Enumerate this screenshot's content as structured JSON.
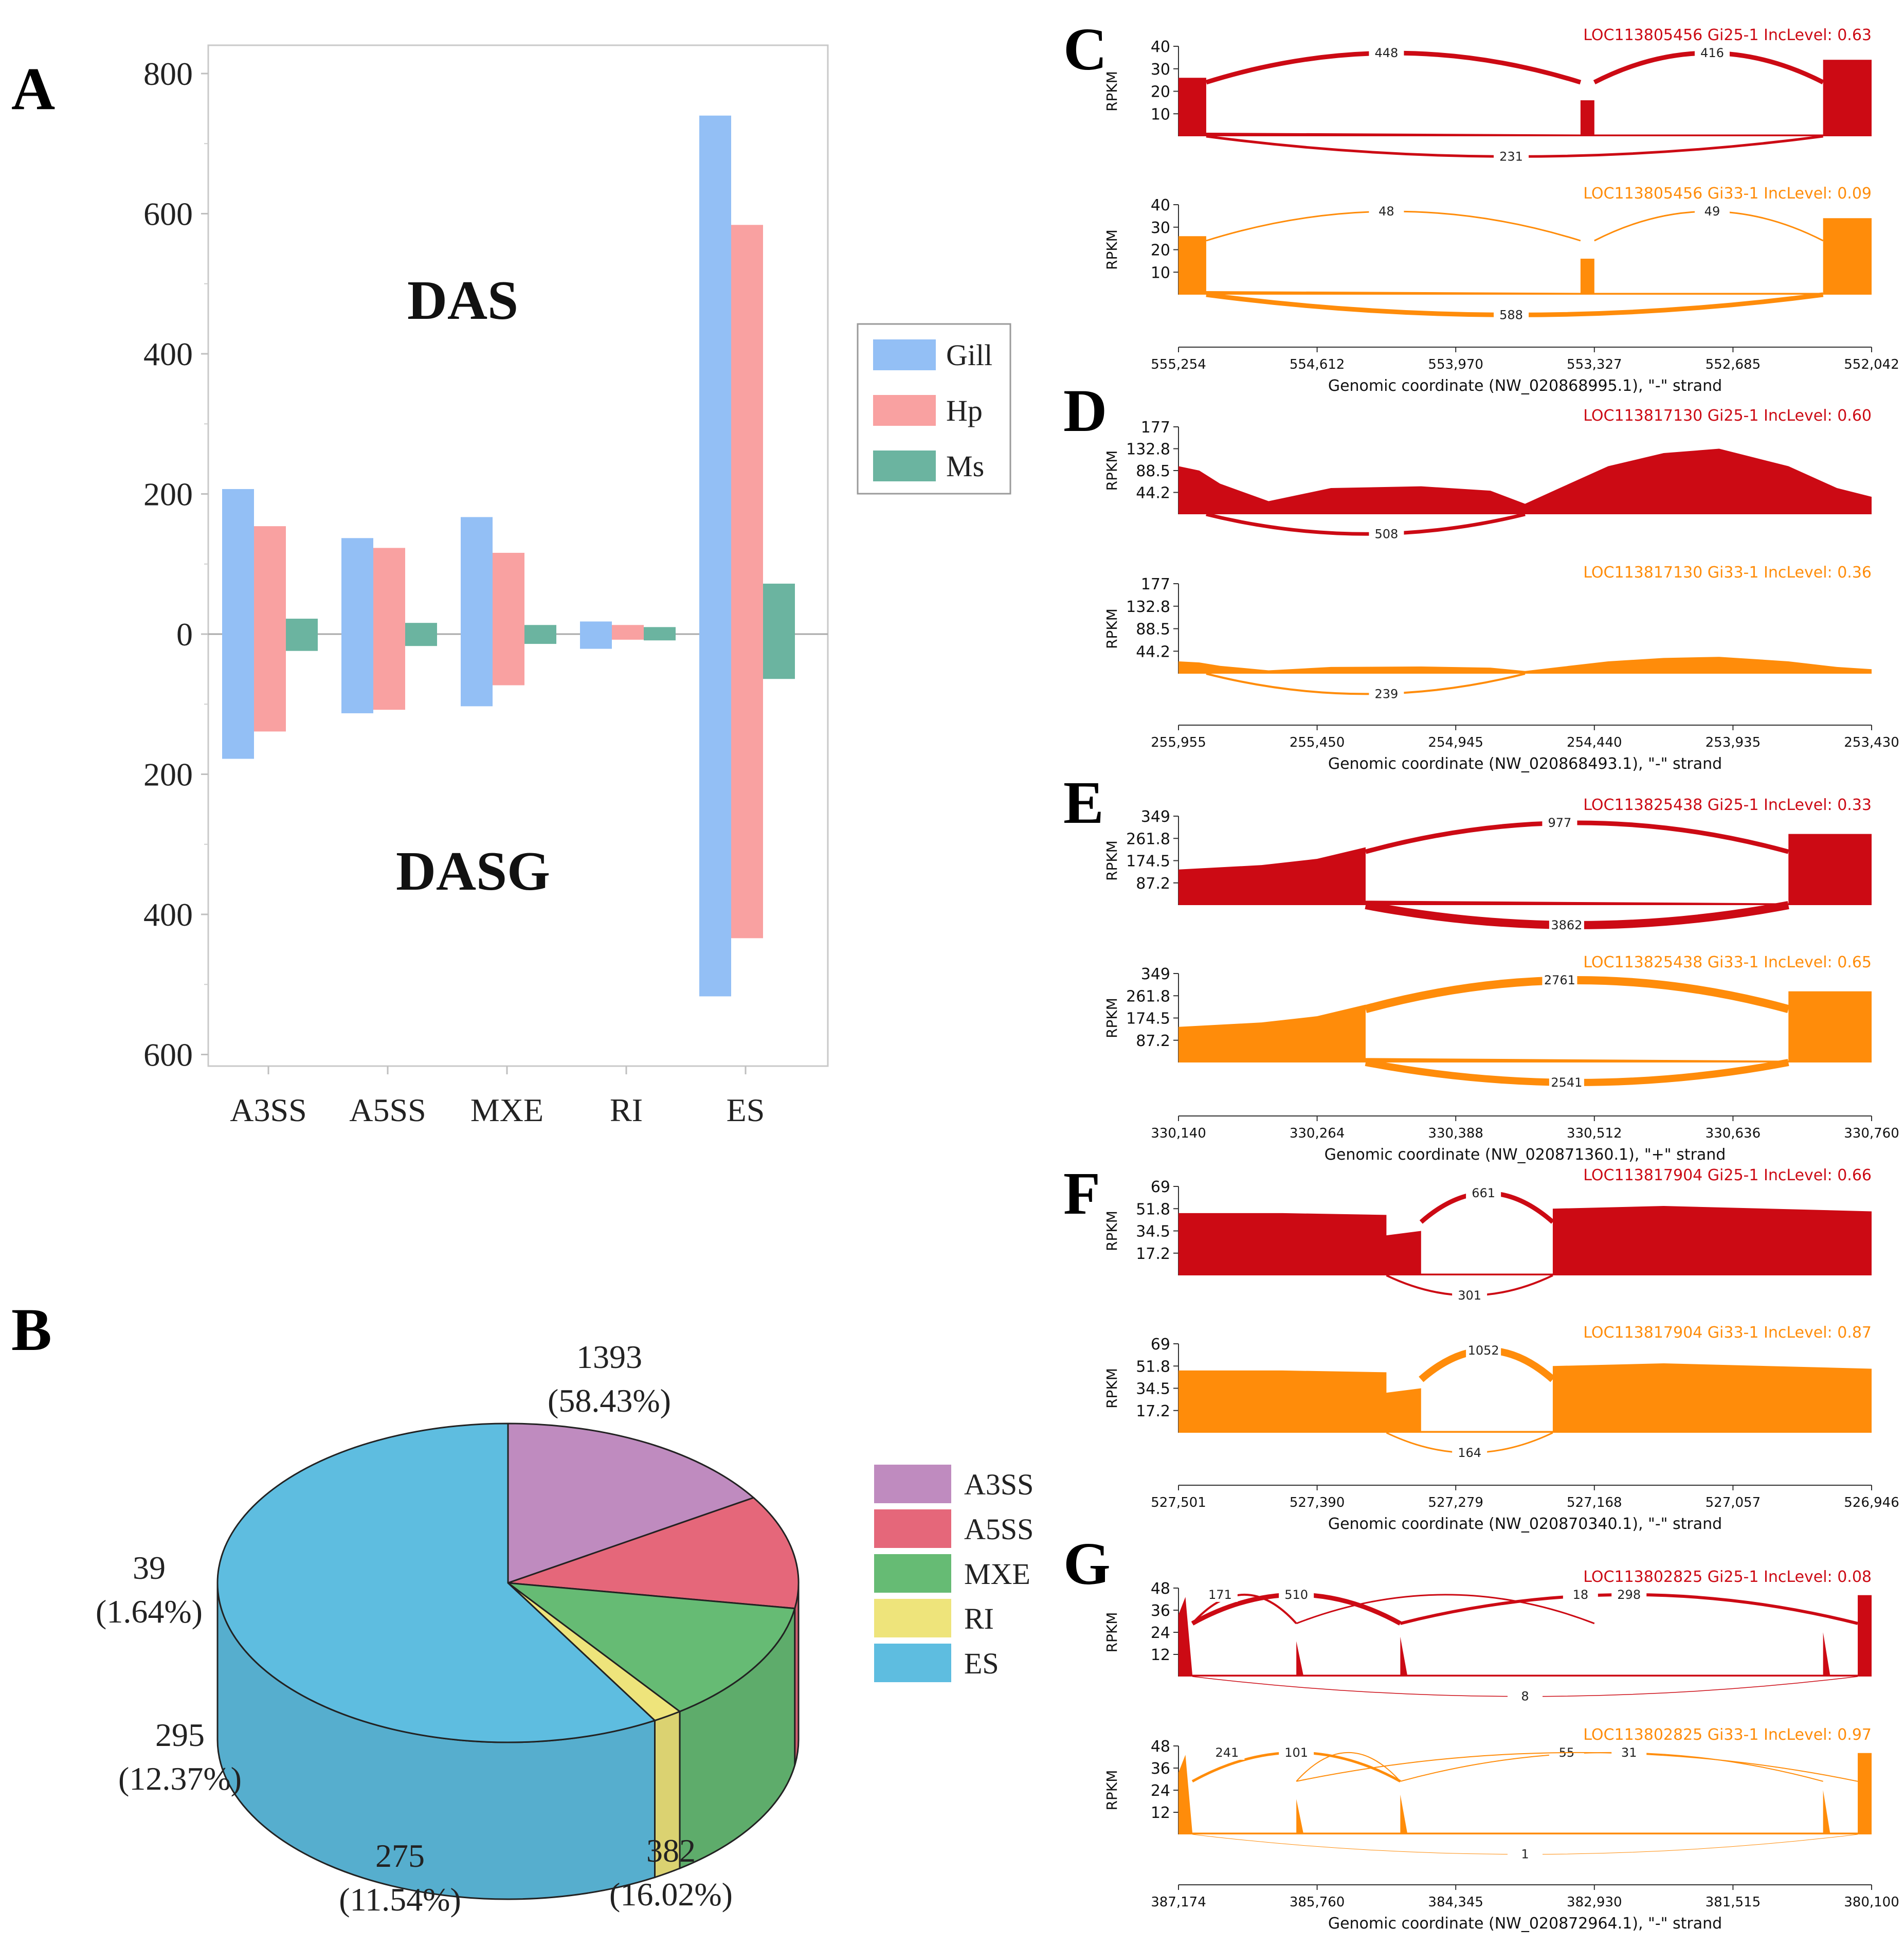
{
  "panel_letters": [
    "A",
    "B",
    "C",
    "D",
    "E",
    "F",
    "G"
  ],
  "chart_data": [
    {
      "panel": "A",
      "type": "bar",
      "title": "",
      "xlabel": "",
      "ylabel": "",
      "categories": [
        "A3SS",
        "A5SS",
        "MXE",
        "RI",
        "ES"
      ],
      "y_ticks_top": [
        "800",
        "600",
        "400",
        "200",
        "0"
      ],
      "y_ticks_bottom": [
        "200",
        "400",
        "600"
      ],
      "ylim": [
        -600,
        800
      ],
      "top_label": "DAS",
      "bottom_label": "DASG",
      "series": [
        {
          "name": "Gill",
          "color": "#93BFF5",
          "das": [
            207,
            137,
            167,
            18,
            740
          ],
          "dasg": [
            178,
            113,
            103,
            21,
            517
          ]
        },
        {
          "name": "Hp",
          "color": "#F9A1A1",
          "das": [
            154,
            123,
            116,
            13,
            584
          ],
          "dasg": [
            139,
            108,
            73,
            8,
            434
          ]
        },
        {
          "name": "Ms",
          "color": "#6BB4A0",
          "das": [
            22,
            16,
            13,
            10,
            72
          ],
          "dasg": [
            24,
            17,
            14,
            9,
            64
          ]
        }
      ]
    },
    {
      "panel": "B",
      "type": "pie",
      "title": "",
      "categories": [
        "A3SS",
        "A5SS",
        "MXE",
        "RI",
        "ES"
      ],
      "values": [
        382,
        275,
        295,
        39,
        1393
      ],
      "percent_labels": [
        "(16.02%)",
        "(11.54%)",
        "(12.37%)",
        "(1.64%)",
        "(58.43%)"
      ],
      "colors": [
        "#BF8BBF",
        "#E5677A",
        "#66BB74",
        "#EEE47B",
        "#5EBDE0"
      ]
    },
    {
      "panel": "C",
      "type": "area",
      "ylabel": "RPKM",
      "y_ticks": [
        "40",
        "30",
        "20",
        "10"
      ],
      "tracks": [
        {
          "title": "LOC113805456 Gi25-1 IncLevel: 0.63",
          "color": "#CC0A14",
          "junctions": [
            "448",
            "416",
            "231"
          ]
        },
        {
          "title": "LOC113805456 Gi33-1 IncLevel: 0.09",
          "color": "#FF8C0A",
          "junctions": [
            "48",
            "49",
            "588"
          ]
        }
      ],
      "x_ticks": [
        "555,254",
        "554,612",
        "553,970",
        "553,327",
        "552,685",
        "552,042"
      ],
      "xlabel": "Genomic coordinate (NW_020868995.1), \"-\" strand"
    },
    {
      "panel": "D",
      "type": "area",
      "ylabel": "RPKM",
      "y_ticks": [
        "177",
        "132.8",
        "88.5",
        "44.2"
      ],
      "tracks": [
        {
          "title": "LOC113817130 Gi25-1 IncLevel: 0.60",
          "color": "#CC0A14",
          "junctions": [
            "508"
          ]
        },
        {
          "title": "LOC113817130 Gi33-1 IncLevel: 0.36",
          "color": "#FF8C0A",
          "junctions": [
            "239"
          ]
        }
      ],
      "x_ticks": [
        "255,955",
        "255,450",
        "254,945",
        "254,440",
        "253,935",
        "253,430"
      ],
      "xlabel": "Genomic coordinate (NW_020868493.1), \"-\" strand"
    },
    {
      "panel": "E",
      "type": "area",
      "ylabel": "RPKM",
      "y_ticks": [
        "349",
        "261.8",
        "174.5",
        "87.2"
      ],
      "tracks": [
        {
          "title": "LOC113825438 Gi25-1 IncLevel: 0.33",
          "color": "#CC0A14",
          "junctions": [
            "977",
            "3862"
          ]
        },
        {
          "title": "LOC113825438 Gi33-1 IncLevel: 0.65",
          "color": "#FF8C0A",
          "junctions": [
            "2761",
            "2541"
          ]
        }
      ],
      "x_ticks": [
        "330,140",
        "330,264",
        "330,388",
        "330,512",
        "330,636",
        "330,760"
      ],
      "xlabel": "Genomic coordinate (NW_020871360.1), \"+\" strand"
    },
    {
      "panel": "F",
      "type": "area",
      "ylabel": "RPKM",
      "y_ticks": [
        "69",
        "51.8",
        "34.5",
        "17.2"
      ],
      "tracks": [
        {
          "title": "LOC113817904 Gi25-1 IncLevel: 0.66",
          "color": "#CC0A14",
          "junctions": [
            "661",
            "301"
          ]
        },
        {
          "title": "LOC113817904 Gi33-1 IncLevel: 0.87",
          "color": "#FF8C0A",
          "junctions": [
            "1052",
            "164"
          ]
        }
      ],
      "x_ticks": [
        "527,501",
        "527,390",
        "527,279",
        "527,168",
        "527,057",
        "526,946"
      ],
      "xlabel": "Genomic coordinate (NW_020870340.1), \"-\" strand"
    },
    {
      "panel": "G",
      "type": "area",
      "ylabel": "RPKM",
      "y_ticks": [
        "48",
        "36",
        "24",
        "12"
      ],
      "tracks": [
        {
          "title": "LOC113802825 Gi25-1 IncLevel: 0.08",
          "color": "#CC0A14",
          "junctions": [
            "510",
            "171",
            "298",
            "18",
            "8"
          ]
        },
        {
          "title": "LOC113802825 Gi33-1 IncLevel: 0.97",
          "color": "#FF8C0A",
          "junctions": [
            "241",
            "101",
            "55",
            "31",
            "1"
          ]
        }
      ],
      "x_ticks": [
        "387,174",
        "385,760",
        "384,345",
        "382,930",
        "381,515",
        "380,100"
      ],
      "xlabel": "Genomic coordinate (NW_020872964.1), \"-\" strand"
    }
  ]
}
